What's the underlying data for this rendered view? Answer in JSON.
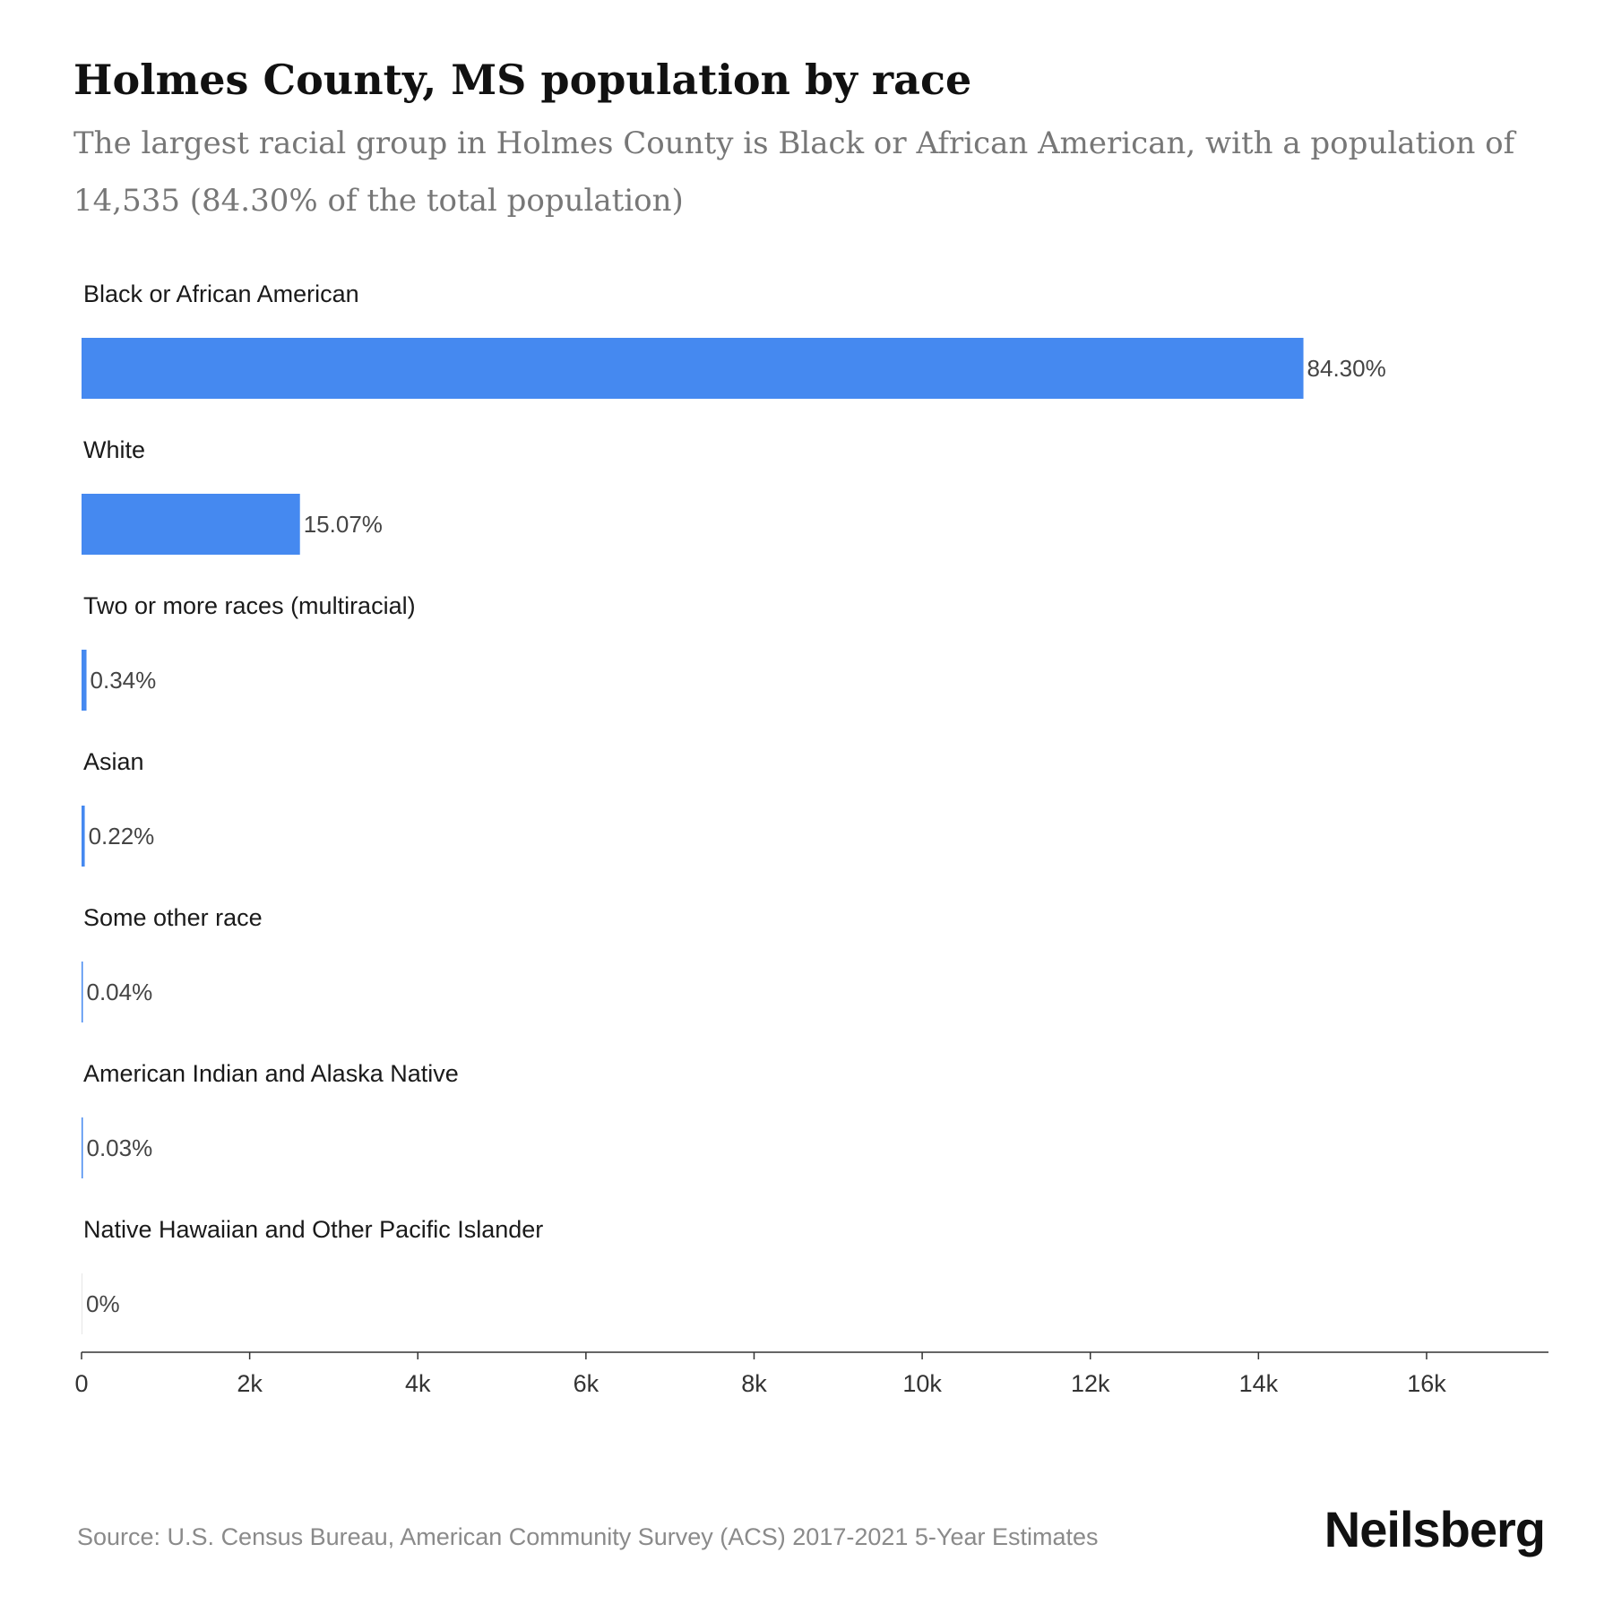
{
  "title": "Holmes County, MS population by race",
  "subtitle": "The largest racial group in Holmes County is Black or African American, with a population of 14,535 (84.30% of the total population)",
  "source": "Source: U.S. Census Bureau, American Community Survey (ACS) 2017-2021 5-Year Estimates",
  "brand": "Neilsberg",
  "colors": {
    "bar": "#4589f0",
    "axis": "#333333"
  },
  "chart_data": {
    "type": "bar",
    "orientation": "horizontal",
    "categories": [
      "Black or African American",
      "White",
      "Two or more races (multiracial)",
      "Asian",
      "Some other race",
      "American Indian and Alaska Native",
      "Native Hawaiian and Other Pacific Islander"
    ],
    "values": [
      14535,
      2598,
      59,
      38,
      7,
      5,
      0
    ],
    "value_labels": [
      "84.30%",
      "15.07%",
      "0.34%",
      "0.22%",
      "0.04%",
      "0.03%",
      "0%"
    ],
    "x_ticks": [
      0,
      2000,
      4000,
      6000,
      8000,
      10000,
      12000,
      14000,
      16000
    ],
    "x_tick_labels": [
      "0",
      "2k",
      "4k",
      "6k",
      "8k",
      "10k",
      "12k",
      "14k",
      "16k"
    ],
    "xlim": [
      0,
      17450
    ],
    "grid": false,
    "legend": "none"
  }
}
